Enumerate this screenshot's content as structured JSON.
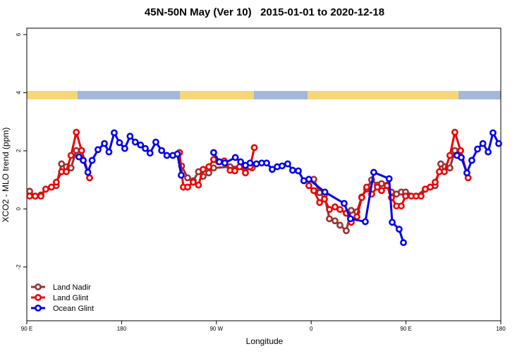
{
  "chart_data": {
    "type": "line",
    "title": "45N-50N May (Ver 10)   2015-01-01 to 2020-12-18",
    "xlabel": "Longitude",
    "ylabel": "XCO2 - MLO trend (ppm)",
    "xlim": [
      90,
      540
    ],
    "ylim": [
      -3.85,
      6.22
    ],
    "xticks": [
      {
        "value": 90,
        "label": "90 E"
      },
      {
        "value": 180,
        "label": "180"
      },
      {
        "value": 270,
        "label": "90 W"
      },
      {
        "value": 360,
        "label": "0"
      },
      {
        "value": 450,
        "label": "90 E"
      },
      {
        "value": 540,
        "label": "180"
      }
    ],
    "yticks": [
      -2,
      0,
      2,
      4,
      6
    ],
    "legend": "bottom-left",
    "series": [
      {
        "name": "Land Nadir",
        "color": "#993333",
        "x": [
          92.7,
          98,
          103.4,
          108,
          113.4,
          118,
          123,
          127.5,
          132,
          137,
          142,
          null,
          237,
          242.7,
          248,
          253,
          257.4,
          262.8,
          267.4,
          283,
          297.6,
          304,
          null,
          362.5,
          368,
          372.6,
          377.3,
          382.6,
          387.3,
          393.3,
          398,
          403.4,
          408,
          412.7,
          417.4,
          422.8,
          426.8,
          432,
          436.2,
          441,
          445.5,
          449.6,
          459.6,
          468.3,
          473,
          477.7,
          483,
          487,
          491.7,
          496.4,
          501.8
        ],
        "values": [
          0.61,
          0.44,
          0.48,
          0.68,
          0.75,
          0.8,
          1.55,
          1.45,
          1.41,
          2.01,
          2.01,
          null,
          1.48,
          1.07,
          0.97,
          1.28,
          1.12,
          1.24,
          1.41,
          1.45,
          1.45,
          1.41,
          null,
          1.02,
          0.56,
          0.48,
          -0.34,
          -0.41,
          -0.56,
          -0.75,
          -0.05,
          -0.1,
          0.41,
          0.68,
          1.0,
          0.82,
          0.87,
          0.82,
          0.58,
          0.51,
          0.58,
          0.58,
          0.44,
          0.68,
          0.75,
          0.8,
          1.55,
          1.45,
          1.41,
          2.01,
          2.01
        ]
      },
      {
        "name": "Land Glint",
        "color": "#ee0000",
        "x": [
          92.7,
          98,
          103.4,
          108,
          113.4,
          118,
          123,
          127.5,
          132,
          137,
          142,
          149.6,
          null,
          235,
          238.6,
          242.7,
          248,
          253,
          257.4,
          262.8,
          267.4,
          272,
          277.5,
          283,
          287.5,
          292,
          297.6,
          302,
          306,
          null,
          357.8,
          362.5,
          368,
          372.6,
          377.3,
          382.6,
          387.3,
          393.3,
          398,
          403.4,
          408,
          412.7,
          417.4,
          422.8,
          426.8,
          432,
          436.2,
          441,
          445.5,
          449.6,
          455,
          459.6,
          464.3,
          468.3,
          473,
          477.7,
          481.7,
          486.4,
          491.7,
          496.4,
          501.8,
          509
        ],
        "values": [
          0.44,
          0.44,
          0.44,
          0.68,
          0.75,
          0.92,
          1.28,
          1.28,
          1.84,
          2.64,
          2.01,
          1.07,
          null,
          1.94,
          0.75,
          0.75,
          0.92,
          0.82,
          1.36,
          1.45,
          1.7,
          1.62,
          1.65,
          1.33,
          1.31,
          1.45,
          1.24,
          1.45,
          2.11,
          null,
          0.8,
          0.63,
          0.22,
          0.34,
          -0.02,
          0.07,
          -0.02,
          -0.15,
          -0.46,
          -0.27,
          0.39,
          0.75,
          0.51,
          0.75,
          0.63,
          0.8,
          0.39,
          0.1,
          0.1,
          0.44,
          0.44,
          0.44,
          0.44,
          0.68,
          0.75,
          0.92,
          1.28,
          1.28,
          1.84,
          2.64,
          2.01,
          1.07
        ]
      },
      {
        "name": "Ocean Glint",
        "color": "#0000ee",
        "x": [
          139.5,
          143.6,
          148,
          152,
          157.6,
          163.7,
          168,
          173,
          178,
          183,
          188,
          193,
          198,
          202.5,
          207,
          212.5,
          218,
          223,
          228.6,
          233,
          236.6,
          null,
          267.4,
          272.8,
          278,
          288,
          293,
          297.6,
          302,
          308,
          313,
          317.7,
          323,
          327.7,
          332.4,
          337.7,
          342.4,
          347.8,
          353,
          357.8,
          373,
          391.3,
          397.3,
          411.4,
          419.4,
          434,
          436.9,
          443.5,
          447.6,
          null,
          498.4,
          502.5,
          507.8,
          512.5,
          517.9,
          523,
          528,
          532.6,
          538
        ],
        "values": [
          1.79,
          1.67,
          1.26,
          1.67,
          2.04,
          2.25,
          1.96,
          2.62,
          2.28,
          2.08,
          2.5,
          2.3,
          2.2,
          2.08,
          1.92,
          2.3,
          2.01,
          1.84,
          1.84,
          1.89,
          1.16,
          null,
          1.94,
          1.62,
          1.58,
          1.77,
          1.62,
          1.5,
          1.58,
          1.55,
          1.58,
          1.58,
          1.36,
          1.45,
          1.48,
          1.55,
          1.33,
          1.31,
          0.97,
          1.02,
          0.58,
          0.19,
          -0.34,
          -0.44,
          1.26,
          1.04,
          -0.46,
          -0.7,
          -1.16,
          null,
          1.84,
          1.77,
          1.24,
          1.67,
          2.06,
          2.25,
          1.96,
          2.62,
          2.25
        ]
      }
    ]
  }
}
